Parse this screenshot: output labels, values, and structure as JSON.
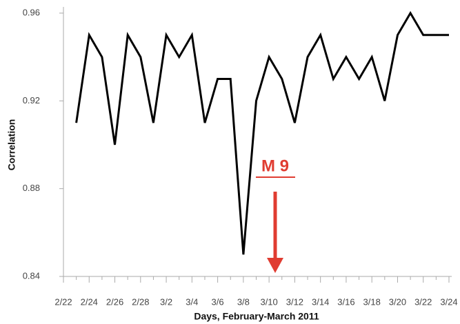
{
  "chart_data": {
    "type": "line",
    "x_label": "Days, February-March 2011",
    "y_label": "Correlation",
    "annotation": "M 9",
    "categories": [
      "2/22",
      null,
      "2/24",
      null,
      "2/26",
      null,
      "2/28",
      null,
      "3/2",
      null,
      "3/4",
      null,
      "3/6",
      null,
      "3/8",
      null,
      "3/10",
      null,
      "3/12",
      null,
      "3/14",
      null,
      "3/16",
      null,
      "3/18",
      null,
      "3/20",
      null,
      "3/22",
      null,
      "3/24"
    ],
    "values": [
      null,
      0.91,
      0.95,
      0.94,
      0.9,
      0.95,
      0.94,
      0.91,
      0.95,
      0.94,
      0.95,
      0.91,
      0.93,
      0.93,
      0.85,
      0.92,
      0.94,
      0.93,
      0.91,
      0.94,
      0.95,
      0.93,
      0.94,
      0.93,
      0.94,
      0.92,
      0.95,
      0.96,
      0.95,
      0.95,
      0.95
    ],
    "color": "#000000",
    "annotation_color": "#e03c31",
    "ylim": [
      0.84,
      0.96
    ],
    "yticks": [
      0.84,
      0.88,
      0.92,
      0.96
    ]
  }
}
